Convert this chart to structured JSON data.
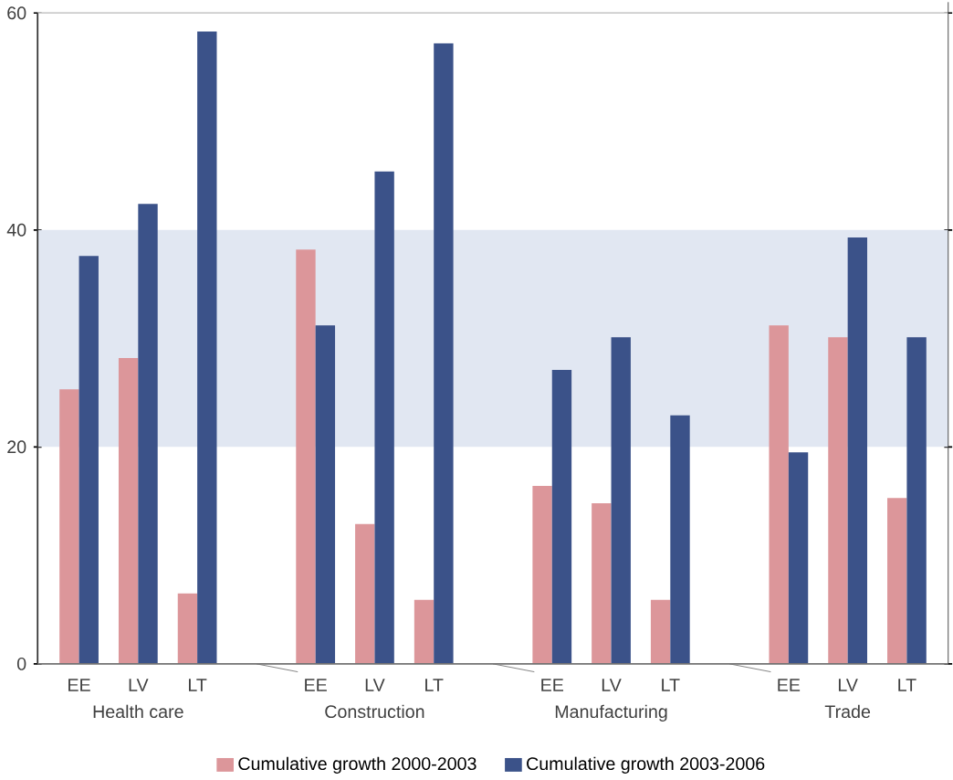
{
  "chart_data": {
    "type": "bar",
    "categories": [
      "EE",
      "LV",
      "LT",
      "EE",
      "LV",
      "LT",
      "EE",
      "LV",
      "LT",
      "EE",
      "LV",
      "LT"
    ],
    "annotations": [
      "Health care",
      "Construction",
      "Manufacturing",
      "Trade"
    ],
    "series": [
      {
        "name": "Cumulative growth 2000-2003",
        "color": "#dc969a",
        "values": [
          25.3,
          28.2,
          6.5,
          38.2,
          12.9,
          5.9,
          16.4,
          14.8,
          5.9,
          31.2,
          30.1,
          15.3
        ]
      },
      {
        "name": "Cumulative growth 2003-2006",
        "color": "#3b5289",
        "values": [
          37.6,
          42.4,
          58.3,
          31.2,
          45.4,
          57.2,
          27.1,
          30.1,
          22.9,
          19.5,
          39.3,
          30.1
        ]
      }
    ],
    "ylim": [
      0,
      60
    ],
    "yticks": [
      0,
      20,
      40,
      60
    ],
    "bands": [
      {
        "axis": "y",
        "from": 20,
        "to": 40,
        "color": "#e1e7f2"
      }
    ],
    "legend": "bottom"
  }
}
